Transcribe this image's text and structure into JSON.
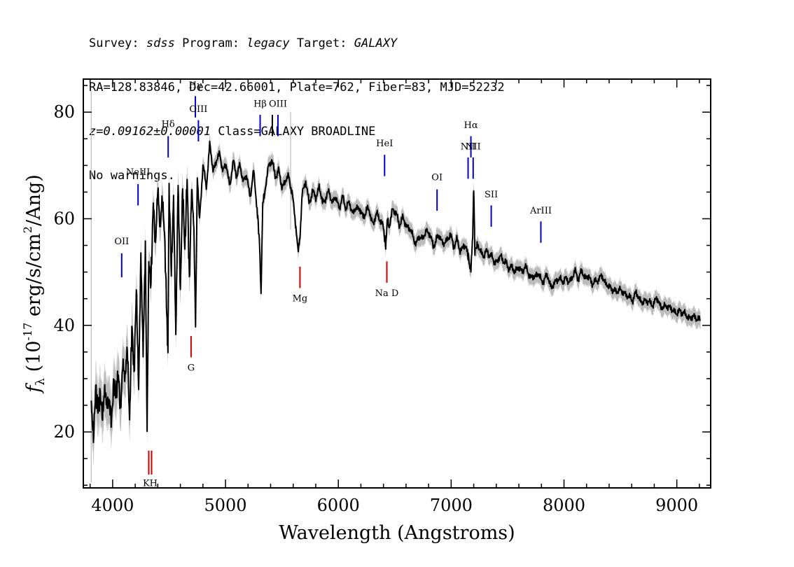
{
  "header": {
    "line1": {
      "survey_label": "Survey: ",
      "survey": "sdss",
      "program_label": " Program: ",
      "program": "legacy",
      "target_label": " Target: ",
      "target": "GALAXY"
    },
    "line2": "RA=128.83846, Dec=42.66001, Plate=762, Fiber=83, MJD=52232",
    "line3": {
      "redshift": "z=0.09162±0.00001",
      "class_text": " Class=GALAXY BROADLINE"
    },
    "line4": "No warnings."
  },
  "chart_data": {
    "type": "line",
    "title": "",
    "xlabel": "Wavelength (Angstroms)",
    "ylabel": "f_λ (10^-17 erg/s/cm^2/Ang)",
    "ylabel_parts": {
      "f": "f",
      "lambda": "λ",
      "prefix": " (10",
      "exp1": "-17",
      "mid": " erg/s/cm",
      "exp2": "2",
      "suffix": "/Ang)"
    },
    "xlim": [
      3740,
      9300
    ],
    "ylim": [
      9.5,
      86.2
    ],
    "xticks": [
      4000,
      5000,
      6000,
      7000,
      8000,
      9000
    ],
    "yticks": [
      20,
      40,
      60,
      80
    ],
    "series": [
      {
        "name": "flux",
        "color": "#000000",
        "x": [
          3810,
          3830,
          3850,
          3870,
          3890,
          3910,
          3930,
          3950,
          3970,
          3990,
          4010,
          4030,
          4050,
          4070,
          4090,
          4110,
          4130,
          4150,
          4170,
          4190,
          4210,
          4230,
          4250,
          4270,
          4290,
          4305,
          4320,
          4340,
          4360,
          4380,
          4400,
          4420,
          4440,
          4460,
          4480,
          4490,
          4500,
          4520,
          4540,
          4560,
          4580,
          4600,
          4620,
          4640,
          4660,
          4680,
          4700,
          4720,
          4735,
          4750,
          4770,
          4800,
          4830,
          4860,
          4890,
          4920,
          4950,
          4980,
          5010,
          5040,
          5070,
          5100,
          5130,
          5160,
          5190,
          5220,
          5250,
          5280,
          5300,
          5315,
          5330,
          5350,
          5380,
          5410,
          5440,
          5470,
          5500,
          5530,
          5560,
          5590,
          5620,
          5645,
          5660,
          5680,
          5710,
          5740,
          5770,
          5800,
          5830,
          5860,
          5890,
          5920,
          5950,
          5980,
          6010,
          6040,
          6070,
          6100,
          6130,
          6160,
          6190,
          6220,
          6250,
          6280,
          6310,
          6340,
          6370,
          6400,
          6420,
          6435,
          6450,
          6480,
          6510,
          6540,
          6570,
          6600,
          6630,
          6660,
          6690,
          6720,
          6750,
          6780,
          6810,
          6840,
          6870,
          6900,
          6930,
          6960,
          6990,
          7020,
          7050,
          7080,
          7110,
          7140,
          7160,
          7175,
          7190,
          7200,
          7210,
          7230,
          7260,
          7290,
          7320,
          7350,
          7380,
          7410,
          7440,
          7470,
          7500,
          7530,
          7560,
          7590,
          7620,
          7650,
          7680,
          7710,
          7740,
          7770,
          7800,
          7830,
          7860,
          7890,
          7920,
          7950,
          7980,
          8010,
          8040,
          8070,
          8100,
          8130,
          8160,
          8190,
          8220,
          8250,
          8280,
          8310,
          8340,
          8370,
          8400,
          8430,
          8460,
          8490,
          8520,
          8550,
          8580,
          8610,
          8640,
          8670,
          8700,
          8730,
          8760,
          8790,
          8820,
          8850,
          8880,
          8910,
          8940,
          8970,
          9000,
          9030,
          9060,
          9090,
          9120,
          9150,
          9180,
          9210
        ],
        "y": [
          25,
          19,
          28,
          24,
          27,
          23,
          28,
          25,
          26,
          22,
          29,
          27,
          31,
          24,
          33,
          30,
          36,
          22,
          40,
          31,
          47,
          28,
          53,
          35,
          55,
          22,
          52,
          48,
          63,
          55,
          66,
          58,
          64,
          57,
          42,
          35,
          66,
          50,
          64,
          38,
          67,
          46,
          66,
          54,
          68,
          48,
          66,
          58,
          40,
          68,
          60,
          70,
          66,
          74,
          69,
          71,
          72,
          69,
          70,
          66,
          71,
          68,
          70,
          67,
          68,
          64,
          69,
          62,
          56,
          46,
          63,
          65,
          70,
          71,
          68,
          69,
          66,
          67,
          68,
          65,
          59,
          54,
          56,
          65,
          67,
          63,
          65,
          64,
          66,
          63,
          64,
          65,
          63,
          64,
          62,
          64,
          62,
          63,
          61,
          62,
          62,
          60,
          62,
          61,
          59,
          61,
          60,
          58,
          55,
          60,
          58,
          62,
          61,
          59,
          60,
          59,
          58,
          57,
          55,
          57,
          56,
          58,
          57,
          55,
          56,
          57,
          55,
          56,
          57,
          55,
          56,
          54,
          55,
          54,
          52,
          50,
          56,
          66,
          54,
          55,
          54,
          53,
          54,
          53,
          52,
          52,
          53,
          52,
          51,
          51,
          50,
          51,
          50,
          51,
          50,
          49,
          49,
          50,
          48,
          49,
          49,
          47,
          48,
          49,
          48,
          49,
          48,
          49,
          50,
          49,
          50,
          49,
          49,
          48,
          48,
          49,
          49,
          48,
          47,
          47,
          46,
          47,
          46,
          46,
          45,
          45,
          46,
          45,
          44,
          45,
          44,
          44,
          45,
          44,
          43,
          44,
          43,
          43,
          42,
          43,
          42,
          42,
          41,
          42,
          41,
          41
        ]
      }
    ],
    "emission_lines": [
      {
        "label": "OII",
        "x": 4080,
        "ymin": 49,
        "ymax": 53.5,
        "label_y": 55.2
      },
      {
        "label": "NeIII",
        "x": 4225,
        "ymin": 62.5,
        "ymax": 66.5,
        "label_y": 68.2
      },
      {
        "label": "Hδ",
        "x": 4492,
        "ymin": 71.5,
        "ymax": 75.5,
        "label_y": 77.2
      },
      {
        "label": "Hγ",
        "x": 4733,
        "ymin": 79,
        "ymax": 83,
        "label_y": 84.5
      },
      {
        "label": "OIII",
        "x": 4760,
        "ymin": 74.5,
        "ymax": 78.5,
        "label_y": 80
      },
      {
        "label": "Hβ",
        "x": 5307,
        "ymin": 75.5,
        "ymax": 79.5,
        "label_y": 81
      },
      {
        "label": "OIII",
        "x": 5465,
        "ymin": 75.5,
        "ymax": 79.5,
        "label_y": 81
      },
      {
        "label": "",
        "x": 5415,
        "ymin": 75.5,
        "ymax": 79.5,
        "label_y": 81
      },
      {
        "label": "HeI",
        "x": 6410,
        "ymin": 68,
        "ymax": 72,
        "label_y": 73.6
      },
      {
        "label": "OI",
        "x": 6875,
        "ymin": 61.5,
        "ymax": 65.5,
        "label_y": 67.2
      },
      {
        "label": "NII",
        "x": 7150,
        "ymin": 67.5,
        "ymax": 71.5,
        "label_y": 73
      },
      {
        "label": "Hα",
        "x": 7175,
        "ymin": 71.5,
        "ymax": 75.5,
        "label_y": 77
      },
      {
        "label": "NII",
        "x": 7195,
        "ymin": 67.5,
        "ymax": 71.5,
        "label_y": 73
      },
      {
        "label": "SII",
        "x": 7355,
        "ymin": 58.5,
        "ymax": 62.5,
        "label_y": 64
      },
      {
        "label": "ArIII",
        "x": 7795,
        "ymin": 55.5,
        "ymax": 59.5,
        "label_y": 61
      }
    ],
    "absorption_lines": [
      {
        "label": "KH",
        "x": 4320,
        "x2": 4345,
        "ymin": 12,
        "ymax": 16.5,
        "label_y": 9.8
      },
      {
        "label": "G",
        "x": 4695,
        "ymin": 34,
        "ymax": 38,
        "label_y": 31.5
      },
      {
        "label": "Mg",
        "x": 5660,
        "ymin": 47,
        "ymax": 51,
        "label_y": 44.5
      },
      {
        "label": "Na  D",
        "x": 6430,
        "ymin": 48,
        "ymax": 52,
        "label_y": 45.5
      }
    ],
    "emission_color": "#0000cc",
    "absorption_color": "#cc0000",
    "error_color": "#bbbbbb"
  }
}
